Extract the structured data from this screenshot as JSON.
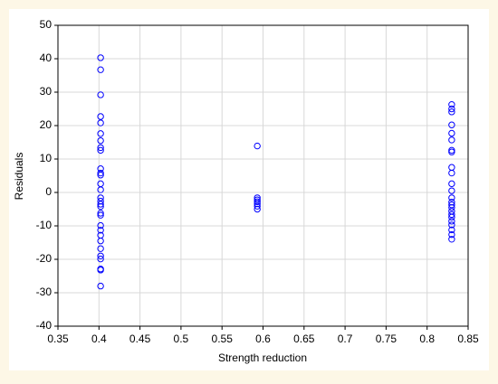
{
  "chart_data": {
    "type": "scatter",
    "x_label": "Strength reduction",
    "y_label": "Residuals",
    "xlim": [
      0.35,
      0.85
    ],
    "xticks": [
      0.35,
      0.4,
      0.45,
      0.5,
      0.55,
      0.6,
      0.65,
      0.7,
      0.75,
      0.8,
      0.85
    ],
    "ylim": [
      -40,
      50
    ],
    "yticks": [
      -40,
      -30,
      -20,
      -10,
      0,
      10,
      20,
      30,
      40,
      50
    ],
    "grid": true,
    "series": [
      {
        "color": "#0000ff",
        "x": [
          0.402,
          0.402,
          0.402,
          0.402,
          0.402,
          0.402,
          0.402,
          0.402,
          0.402,
          0.402,
          0.402,
          0.402,
          0.402,
          0.402,
          0.402,
          0.402,
          0.402,
          0.402,
          0.402,
          0.402,
          0.402,
          0.402,
          0.402,
          0.402,
          0.402,
          0.402,
          0.402,
          0.402,
          0.402,
          0.402,
          0.593,
          0.593,
          0.593,
          0.593,
          0.593,
          0.593,
          0.593,
          0.83,
          0.83,
          0.83,
          0.83,
          0.83,
          0.83,
          0.83,
          0.83,
          0.83,
          0.83,
          0.83,
          0.83,
          0.83,
          0.83,
          0.83,
          0.83,
          0.83,
          0.83,
          0.83,
          0.83,
          0.83,
          0.83,
          0.83,
          0.83
        ],
        "values": [
          40.3,
          36.7,
          29.2,
          22.7,
          20.8,
          17.6,
          15.5,
          13.4,
          12.6,
          7.1,
          5.8,
          5.2,
          2.6,
          0.8,
          -1.6,
          -2.6,
          -3.5,
          -4.2,
          -6.2,
          -6.8,
          -9.9,
          -11.3,
          -12.8,
          -14.5,
          -16.8,
          -19.0,
          -19.9,
          -22.9,
          -23.2,
          -28.0,
          13.9,
          -1.6,
          -2.2,
          -2.8,
          -3.4,
          -4.1,
          -5.0,
          26.3,
          25.0,
          24.1,
          20.2,
          17.7,
          15.7,
          12.6,
          12.1,
          7.5,
          5.8,
          2.6,
          0.5,
          -1.6,
          -2.9,
          -3.7,
          -4.5,
          -5.6,
          -6.6,
          -7.4,
          -8.6,
          -9.7,
          -11.2,
          -12.6,
          -14.0
        ]
      }
    ]
  }
}
